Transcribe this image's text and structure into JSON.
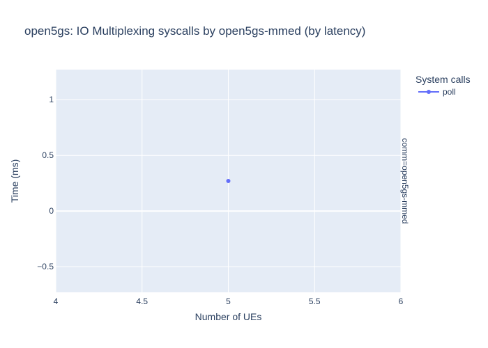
{
  "chart_data": {
    "type": "scatter",
    "title": "open5gs: IO Multiplexing syscalls by open5gs-mmed (by latency)",
    "xlabel": "Number of UEs",
    "ylabel": "Time (ms)",
    "xlim": [
      4,
      6
    ],
    "ylim": [
      -0.73,
      1.27
    ],
    "x_ticks": [
      4,
      4.5,
      5,
      5.5,
      6
    ],
    "x_tick_labels": [
      "4",
      "4.5",
      "5",
      "5.5",
      "6"
    ],
    "y_ticks": [
      -0.5,
      0,
      0.5,
      1
    ],
    "y_tick_labels": [
      "−0.5",
      "0",
      "0.5",
      "1"
    ],
    "grid": true,
    "legend": {
      "title": "System calls",
      "placement": "top-right"
    },
    "facet_label": "comm=open5gs-mmed",
    "series": [
      {
        "name": "poll",
        "color": "#636efa",
        "x": [
          5
        ],
        "y": [
          0.27
        ]
      }
    ]
  }
}
